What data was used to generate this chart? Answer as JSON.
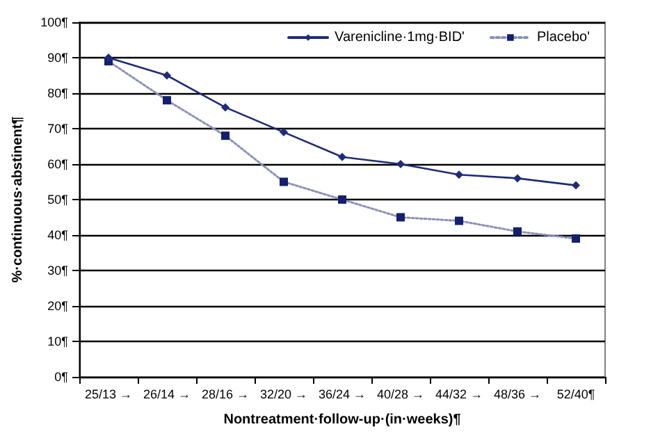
{
  "chart_data": {
    "type": "line",
    "xlabel": "Nontreatment·follow-up·(in·weeks)¶",
    "ylabel": "%·continuous·abstinent¶",
    "categories": [
      "25/13 →",
      "26/14 →",
      "28/16 →",
      "32/20 →",
      "36/24 →",
      "40/28 →",
      "44/32 →",
      "48/36 →",
      "52/40¶"
    ],
    "series": [
      {
        "name": "Varenicline·1mg·BID'",
        "color": "#1f2a78",
        "marker": "diamond",
        "line_style": "solid",
        "values": [
          90,
          85,
          76,
          69,
          62,
          60,
          57,
          56,
          54
        ]
      },
      {
        "name": "Placebo'",
        "color": "#14206e",
        "marker": "square",
        "line_style": "dotted",
        "values": [
          89,
          78,
          68,
          55,
          50,
          45,
          44,
          41,
          39
        ]
      }
    ],
    "ylim": [
      0,
      100
    ],
    "yticks": [
      {
        "value": 0,
        "label": "0¶"
      },
      {
        "value": 10,
        "label": "10¶"
      },
      {
        "value": 20,
        "label": "20¶"
      },
      {
        "value": 30,
        "label": "30¶"
      },
      {
        "value": 40,
        "label": "40¶"
      },
      {
        "value": 50,
        "label": "50¶"
      },
      {
        "value": 60,
        "label": "60¶"
      },
      {
        "value": 70,
        "label": "70¶"
      },
      {
        "value": 80,
        "label": "80¶"
      },
      {
        "value": 90,
        "label": "90¶"
      },
      {
        "value": 100,
        "label": "100¶"
      }
    ],
    "grid": "y",
    "legend": "top right"
  }
}
